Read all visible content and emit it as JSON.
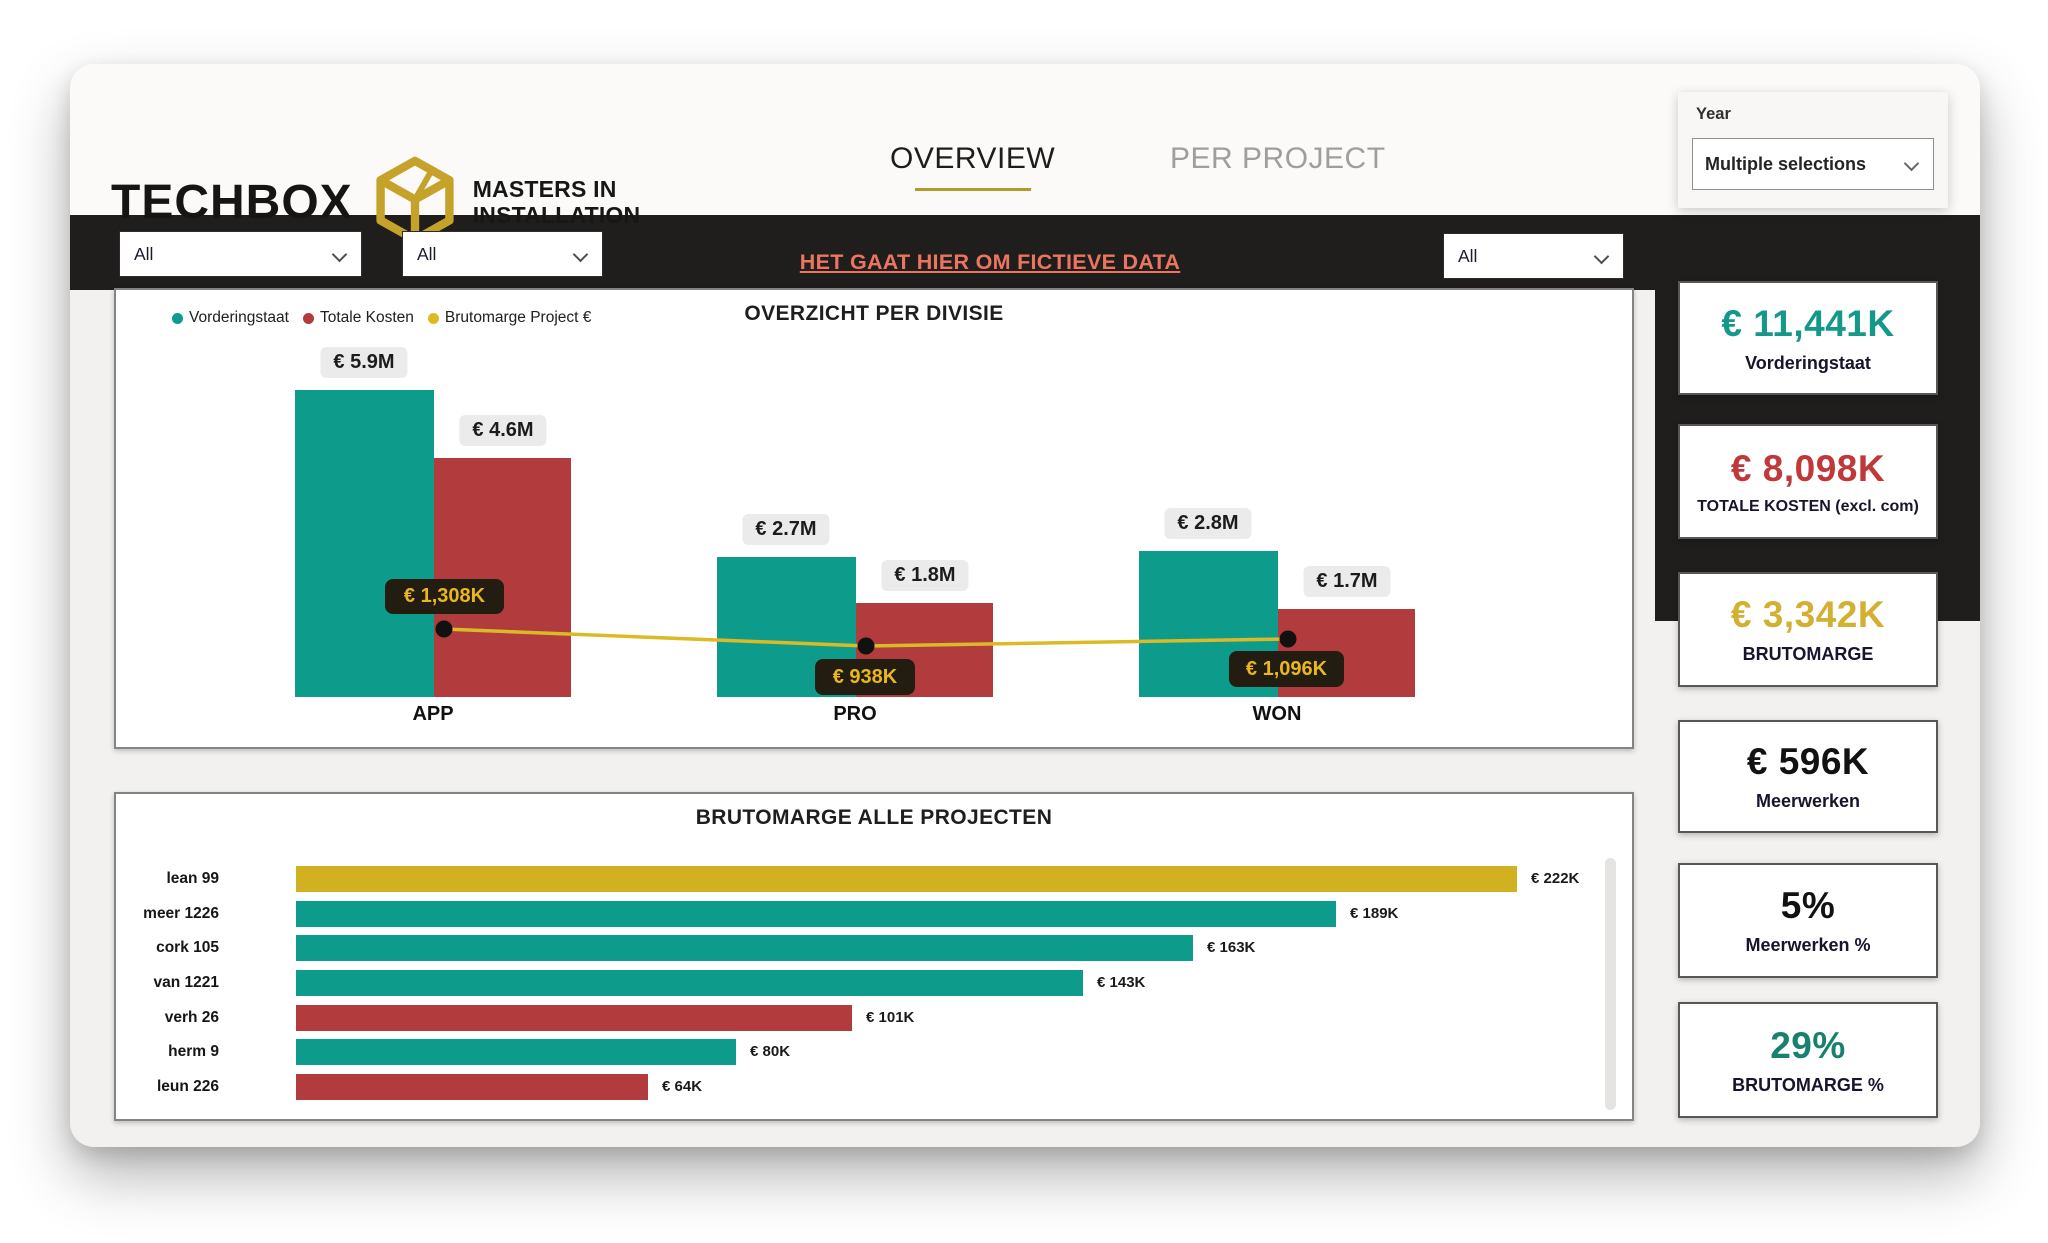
{
  "header": {
    "brand": "TECHBOX",
    "tagline_line1": "MASTERS IN",
    "tagline_line2": "INSTALLATION",
    "tabs": [
      {
        "label": "OVERVIEW",
        "active": true
      },
      {
        "label": "PER PROJECT",
        "active": false
      }
    ],
    "year_slicer": {
      "label": "Year",
      "value": "Multiple selections"
    }
  },
  "filters": {
    "slicer1_value": "All",
    "slicer2_value": "All",
    "slicer3_value": "All",
    "warning_text": "HET GAAT HIER OM FICTIEVE DATA"
  },
  "colors": {
    "teal": "#0d9c8c",
    "red": "#b13b3d",
    "gold": "#d1b121",
    "gold_line": "#dcba25",
    "dark_band": "#201d1d",
    "coral_warning": "#ec7560",
    "kpi_teal": "#13988a",
    "kpi_red": "#bf393b",
    "kpi_gold": "#d2b132",
    "kpi_teal_dark": "#17806e"
  },
  "chart_data": [
    {
      "type": "bar",
      "subtype": "combo bar+line",
      "title": "OVERZICHT PER DIVISIE",
      "categories": [
        "APP",
        "PRO",
        "WON"
      ],
      "legend_position": "top-left",
      "series": [
        {
          "name": "Vorderingstaat",
          "chart": "bar",
          "color": "#0d9c8c",
          "values_millions": [
            5.9,
            2.7,
            2.8
          ],
          "labels": [
            "€ 5.9M",
            "€ 2.7M",
            "€ 2.8M"
          ]
        },
        {
          "name": "Totale Kosten",
          "chart": "bar",
          "color": "#b13b3d",
          "values_millions": [
            4.6,
            1.8,
            1.7
          ],
          "labels": [
            "€ 4.6M",
            "€ 1.8M",
            "€ 1.7M"
          ]
        },
        {
          "name": "Brutomarge Project €",
          "chart": "line",
          "color": "#dcba25",
          "values_thousands": [
            1308,
            938,
            1096
          ],
          "labels": [
            "€ 1,308K",
            "€ 938K",
            "€ 1,096K"
          ]
        }
      ]
    },
    {
      "type": "bar",
      "orientation": "horizontal",
      "title": "BRUTOMARGE ALLE PROJECTEN",
      "categories": [
        "lean 99",
        "meer 1226",
        "cork 105",
        "van 1221",
        "verh 26",
        "herm 9",
        "leun 226"
      ],
      "values_thousands": [
        222,
        189,
        163,
        143,
        101,
        80,
        64
      ],
      "value_labels": [
        "€ 222K",
        "€ 189K",
        "€ 163K",
        "€ 143K",
        "€ 101K",
        "€ 80K",
        "€ 64K"
      ],
      "bar_colors": [
        "#d1b121",
        "#0d9c8c",
        "#0d9c8c",
        "#0d9c8c",
        "#b13b3d",
        "#0d9c8c",
        "#b13b3d"
      ],
      "xlim_thousands": [
        0,
        240
      ]
    }
  ],
  "kpis": {
    "items": [
      {
        "value": "€ 11,441K",
        "label": "Vorderingstaat",
        "value_color": "#13988a"
      },
      {
        "value": "€ 8,098K",
        "label": "TOTALE KOSTEN (excl. com)",
        "value_color": "#bf393b"
      },
      {
        "value": "€ 3,342K",
        "label": "BRUTOMARGE",
        "value_color": "#d2b132"
      },
      {
        "value": "€ 596K",
        "label": "Meerwerken",
        "value_color": "#121212"
      },
      {
        "value": "5%",
        "label": "Meerwerken %",
        "value_color": "#121212"
      },
      {
        "value": "29%",
        "label": "BRUTOMARGE %",
        "value_color": "#17806e"
      }
    ]
  }
}
